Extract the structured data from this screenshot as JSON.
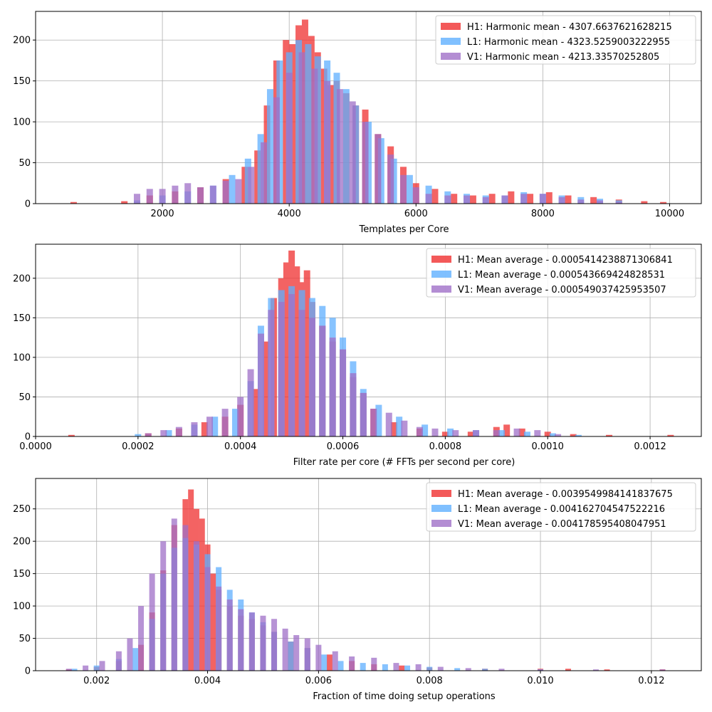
{
  "colors": {
    "H1": "#f03030",
    "L1": "#60b0ff",
    "V1": "#a070c8"
  },
  "chart_data": [
    {
      "type": "histogram",
      "xlabel": "Templates per Core",
      "ylabel": "",
      "xlim": [
        0,
        10500
      ],
      "ylim": [
        0,
        235
      ],
      "xticks": [
        "2000",
        "4000",
        "6000",
        "8000",
        "10000"
      ],
      "yticks": [
        "0",
        "50",
        "100",
        "150",
        "200"
      ],
      "grid": true,
      "legend_position": "top-right",
      "series": [
        {
          "name": "H1: Harmonic mean  - 4307.6637621628215",
          "color": "#f03030",
          "x": [
            600,
            1400,
            1800,
            2200,
            2600,
            3000,
            3300,
            3500,
            3650,
            3800,
            3950,
            4050,
            4150,
            4250,
            4350,
            4450,
            4550,
            4650,
            4750,
            4900,
            5050,
            5200,
            5400,
            5600,
            5800,
            6000,
            6300,
            6600,
            6900,
            7200,
            7500,
            7800,
            8100,
            8400,
            8800,
            9200,
            9600,
            9900
          ],
          "values": [
            2,
            3,
            10,
            15,
            20,
            30,
            45,
            65,
            120,
            175,
            200,
            195,
            218,
            225,
            205,
            185,
            165,
            145,
            150,
            135,
            120,
            115,
            85,
            70,
            45,
            25,
            18,
            12,
            10,
            12,
            15,
            12,
            14,
            10,
            8,
            5,
            3,
            2
          ]
        },
        {
          "name": "L1: Harmonic mean  - 4323.5259003222955",
          "color": "#60b0ff",
          "x": [
            1600,
            2000,
            2400,
            2800,
            3100,
            3350,
            3550,
            3700,
            3850,
            4000,
            4150,
            4300,
            4450,
            4600,
            4750,
            4900,
            5050,
            5250,
            5450,
            5650,
            5900,
            6200,
            6500,
            6800,
            7100,
            7400,
            7700,
            8000,
            8300,
            8600,
            8900,
            9200
          ],
          "values": [
            4,
            10,
            15,
            22,
            35,
            55,
            85,
            140,
            175,
            185,
            200,
            195,
            180,
            175,
            160,
            140,
            120,
            100,
            80,
            55,
            35,
            22,
            15,
            12,
            10,
            10,
            14,
            12,
            10,
            8,
            6,
            4
          ]
        },
        {
          "name": "V1: Harmonic mean  - 4213.33570252805",
          "color": "#a070c8",
          "x": [
            1600,
            1800,
            2000,
            2200,
            2400,
            2600,
            2800,
            3000,
            3200,
            3400,
            3600,
            3800,
            4000,
            4200,
            4400,
            4600,
            4800,
            5000,
            5200,
            5400,
            5600,
            5800,
            6000,
            6200,
            6500,
            6800,
            7100,
            7400,
            7700,
            8000,
            8300,
            8600,
            8900,
            9200
          ],
          "values": [
            12,
            18,
            18,
            22,
            25,
            20,
            22,
            28,
            30,
            45,
            75,
            130,
            160,
            185,
            165,
            150,
            140,
            125,
            100,
            85,
            60,
            35,
            20,
            12,
            10,
            10,
            8,
            10,
            12,
            12,
            8,
            5,
            4,
            2
          ]
        }
      ]
    },
    {
      "type": "histogram",
      "xlabel": "Filter rate per core (# FFTs per second per core)",
      "ylabel": "",
      "xlim": [
        0.0,
        0.0013
      ],
      "ylim": [
        0,
        243
      ],
      "xticks": [
        "0.0000",
        "0.0002",
        "0.0004",
        "0.0006",
        "0.0008",
        "0.0010",
        "0.0012"
      ],
      "yticks": [
        "0",
        "50",
        "100",
        "150",
        "200"
      ],
      "grid": true,
      "legend_position": "top-right",
      "series": [
        {
          "name": "H1: Mean average - 0.0005414238871306841",
          "color": "#f03030",
          "x": [
            7e-05,
            0.00022,
            0.00028,
            0.00033,
            0.00037,
            0.0004,
            0.00043,
            0.00045,
            0.000465,
            0.00048,
            0.00049,
            0.0005,
            0.00051,
            0.00052,
            0.00053,
            0.00054,
            0.00056,
            0.00058,
            0.0006,
            0.00062,
            0.00064,
            0.00066,
            0.0007,
            0.00075,
            0.0008,
            0.00085,
            0.0009,
            0.00092,
            0.00095,
            0.001,
            0.00105,
            0.00112,
            0.00124
          ],
          "values": [
            2,
            4,
            10,
            18,
            25,
            40,
            60,
            120,
            175,
            200,
            220,
            235,
            215,
            195,
            210,
            170,
            140,
            120,
            110,
            75,
            55,
            35,
            18,
            10,
            6,
            6,
            12,
            15,
            10,
            6,
            3,
            2,
            2
          ]
        },
        {
          "name": "L1: Mean average - 0.000543669424828531",
          "color": "#60b0ff",
          "x": [
            0.0002,
            0.00026,
            0.00031,
            0.00035,
            0.00039,
            0.00042,
            0.00044,
            0.00046,
            0.00048,
            0.0005,
            0.00052,
            0.00054,
            0.00056,
            0.00058,
            0.0006,
            0.00062,
            0.00064,
            0.00067,
            0.00071,
            0.00076,
            0.00081,
            0.00086,
            0.00091,
            0.00096,
            0.00101,
            0.00106
          ],
          "values": [
            3,
            8,
            15,
            25,
            35,
            70,
            140,
            175,
            185,
            190,
            185,
            175,
            165,
            150,
            125,
            95,
            60,
            40,
            25,
            15,
            10,
            8,
            8,
            6,
            4,
            2
          ]
        },
        {
          "name": "V1: Mean average - 0.000549037425953507",
          "color": "#a070c8",
          "x": [
            0.00022,
            0.00025,
            0.00028,
            0.00031,
            0.00034,
            0.00037,
            0.0004,
            0.00042,
            0.00044,
            0.00046,
            0.00048,
            0.0005,
            0.00052,
            0.00054,
            0.00056,
            0.00058,
            0.0006,
            0.00062,
            0.00064,
            0.00066,
            0.00069,
            0.00072,
            0.00075,
            0.00078,
            0.00082,
            0.00086,
            0.0009,
            0.00094,
            0.00098,
            0.00102
          ],
          "values": [
            4,
            8,
            12,
            18,
            25,
            35,
            50,
            85,
            130,
            160,
            170,
            180,
            160,
            150,
            140,
            125,
            110,
            80,
            55,
            35,
            30,
            20,
            12,
            10,
            8,
            8,
            8,
            10,
            8,
            3
          ]
        }
      ]
    },
    {
      "type": "histogram",
      "xlabel": "Fraction of time doing setup operations",
      "ylabel": "",
      "xlim": [
        0.0009,
        0.0129
      ],
      "ylim": [
        0,
        297
      ],
      "xticks": [
        "0.002",
        "0.004",
        "0.006",
        "0.008",
        "0.010",
        "0.012"
      ],
      "yticks": [
        "0",
        "50",
        "100",
        "150",
        "200",
        "250"
      ],
      "grid": true,
      "legend_position": "top-right",
      "series": [
        {
          "name": "H1: Mean average - 0.0039549984141837675",
          "color": "#f03030",
          "x": [
            0.0015,
            0.002,
            0.0024,
            0.0028,
            0.003,
            0.0032,
            0.0034,
            0.0036,
            0.0037,
            0.0038,
            0.0039,
            0.004,
            0.0041,
            0.0042,
            0.0044,
            0.0046,
            0.0048,
            0.005,
            0.0052,
            0.0055,
            0.0058,
            0.0062,
            0.0066,
            0.007,
            0.0075,
            0.008,
            0.009,
            0.01,
            0.0105,
            0.0112,
            0.0122
          ],
          "values": [
            2,
            6,
            15,
            40,
            90,
            155,
            225,
            265,
            280,
            250,
            235,
            195,
            150,
            125,
            100,
            85,
            80,
            70,
            60,
            45,
            35,
            25,
            15,
            10,
            8,
            5,
            3,
            3,
            3,
            2,
            2
          ]
        },
        {
          "name": "L1: Mean average - 0.004162704547522216",
          "color": "#60b0ff",
          "x": [
            0.0016,
            0.002,
            0.0024,
            0.0027,
            0.003,
            0.0032,
            0.0034,
            0.0036,
            0.0038,
            0.004,
            0.0042,
            0.0044,
            0.0046,
            0.0048,
            0.005,
            0.0052,
            0.0055,
            0.0058,
            0.0061,
            0.0064,
            0.0068,
            0.0072,
            0.0076,
            0.008,
            0.0085,
            0.009,
            0.01
          ],
          "values": [
            3,
            8,
            18,
            35,
            80,
            150,
            190,
            205,
            195,
            180,
            160,
            125,
            110,
            90,
            75,
            60,
            45,
            35,
            25,
            15,
            12,
            10,
            8,
            6,
            4,
            3,
            2
          ]
        },
        {
          "name": "V1: Mean average - 0.004178595408047951",
          "color": "#a070c8",
          "x": [
            0.0015,
            0.0018,
            0.0021,
            0.0024,
            0.0026,
            0.0028,
            0.003,
            0.0032,
            0.0034,
            0.0036,
            0.0038,
            0.004,
            0.0042,
            0.0044,
            0.0046,
            0.0048,
            0.005,
            0.0052,
            0.0054,
            0.0056,
            0.0058,
            0.006,
            0.0063,
            0.0066,
            0.007,
            0.0074,
            0.0078,
            0.0082,
            0.0087,
            0.0093,
            0.01,
            0.011,
            0.0122
          ],
          "values": [
            3,
            8,
            15,
            30,
            50,
            100,
            150,
            200,
            235,
            225,
            200,
            160,
            130,
            110,
            95,
            90,
            85,
            80,
            65,
            55,
            50,
            40,
            30,
            22,
            20,
            12,
            10,
            6,
            4,
            3,
            2,
            2,
            2
          ]
        }
      ]
    }
  ]
}
